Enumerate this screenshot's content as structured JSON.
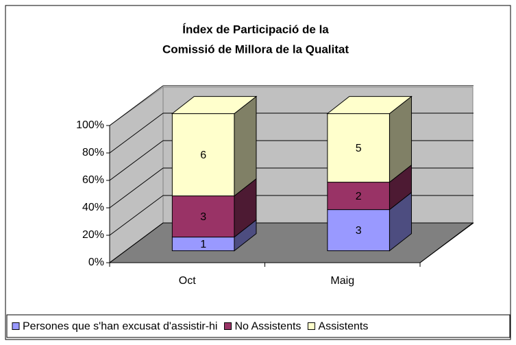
{
  "chart_data": {
    "type": "bar",
    "stacked": "percent",
    "title": [
      "Índex de Participació de la",
      "Comissió de Millora de la Qualitat"
    ],
    "categories": [
      "Oct",
      "Maig"
    ],
    "series": [
      {
        "name": "Persones que s'han excusat d'assistir-hi",
        "color": "#9999ff",
        "values": [
          1,
          3
        ]
      },
      {
        "name": "No Assistents",
        "color": "#993366",
        "values": [
          3,
          2
        ]
      },
      {
        "name": "Assistents",
        "color": "#ffffcc",
        "values": [
          6,
          5
        ]
      }
    ],
    "ylim": [
      0,
      100
    ],
    "yticks": [
      {
        "value": 0,
        "label": "0%"
      },
      {
        "value": 20,
        "label": "20%"
      },
      {
        "value": 40,
        "label": "40%"
      },
      {
        "value": 60,
        "label": "60%"
      },
      {
        "value": 80,
        "label": "80%"
      },
      {
        "value": 100,
        "label": "100%"
      }
    ],
    "grid": true,
    "legend": "bottom"
  }
}
